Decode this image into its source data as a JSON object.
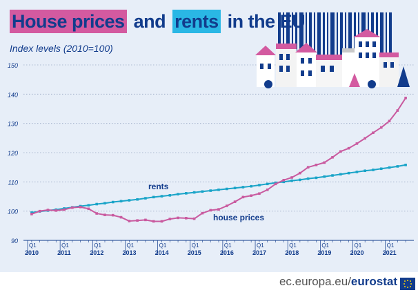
{
  "title_part1": "House prices",
  "title_part2": "and",
  "title_part3": "rents",
  "title_part4": "in the EU",
  "subtitle": "Index levels (2010=100)",
  "source_prefix": "ec.europa.eu/",
  "source_brand": "eurostat",
  "icons": [
    "city-houses-illustration-icon",
    "eu-flag-icon"
  ],
  "colors": {
    "house_prices": "#c95a9f",
    "rents": "#1aa4c8",
    "title_navy": "#123c8c",
    "pink_highlight": "#d35aa0",
    "blue_highlight": "#2ab7e5",
    "background": "#e7eef8"
  },
  "chart_data": {
    "type": "line",
    "x": [
      "2010Q1",
      "2010Q2",
      "2010Q3",
      "2010Q4",
      "2011Q1",
      "2011Q2",
      "2011Q3",
      "2011Q4",
      "2012Q1",
      "2012Q2",
      "2012Q3",
      "2012Q4",
      "2013Q1",
      "2013Q2",
      "2013Q3",
      "2013Q4",
      "2014Q1",
      "2014Q2",
      "2014Q3",
      "2014Q4",
      "2015Q1",
      "2015Q2",
      "2015Q3",
      "2015Q4",
      "2016Q1",
      "2016Q2",
      "2016Q3",
      "2016Q4",
      "2017Q1",
      "2017Q2",
      "2017Q3",
      "2017Q4",
      "2018Q1",
      "2018Q2",
      "2018Q3",
      "2018Q4",
      "2019Q1",
      "2019Q2",
      "2019Q3",
      "2019Q4",
      "2020Q1",
      "2020Q2",
      "2020Q3",
      "2020Q4",
      "2021Q1",
      "2021Q2",
      "2021Q3"
    ],
    "series": [
      {
        "name": "rents",
        "values": [
          99.5,
          99.9,
          100.2,
          100.5,
          100.9,
          101.3,
          101.7,
          102.0,
          102.4,
          102.7,
          103.1,
          103.4,
          103.7,
          104.0,
          104.4,
          104.8,
          105.1,
          105.4,
          105.8,
          106.1,
          106.4,
          106.7,
          107.0,
          107.3,
          107.6,
          107.9,
          108.2,
          108.5,
          108.9,
          109.3,
          109.7,
          110.0,
          110.4,
          110.7,
          111.1,
          111.4,
          111.8,
          112.2,
          112.6,
          113.0,
          113.4,
          113.8,
          114.1,
          114.5,
          114.9,
          115.3,
          115.8
        ]
      },
      {
        "name": "house prices",
        "values": [
          99.0,
          100.0,
          100.4,
          100.2,
          100.5,
          101.2,
          101.4,
          100.8,
          99.2,
          98.7,
          98.6,
          97.9,
          96.6,
          96.8,
          97.0,
          96.5,
          96.5,
          97.3,
          97.7,
          97.6,
          97.4,
          99.3,
          100.3,
          100.6,
          101.8,
          103.2,
          104.8,
          105.3,
          106.0,
          107.3,
          109.3,
          110.6,
          111.5,
          113.0,
          115.0,
          115.8,
          116.6,
          118.4,
          120.4,
          121.5,
          123.1,
          124.9,
          126.8,
          128.6,
          130.8,
          134.4,
          138.7
        ]
      }
    ],
    "series_labels": [
      "rents",
      "house prices"
    ],
    "y_ticks": [
      90,
      100,
      110,
      120,
      130,
      140,
      150
    ],
    "ylim": [
      90,
      150
    ],
    "x_tick_quarter_label": "Q1",
    "x_tick_years": [
      "2010",
      "2011",
      "2012",
      "2013",
      "2014",
      "2015",
      "2016",
      "2017",
      "2018",
      "2019",
      "2020",
      "2021"
    ],
    "xlabel": "",
    "ylabel": "",
    "grid": "horizontal-dotted",
    "legend": "inline-labels"
  }
}
